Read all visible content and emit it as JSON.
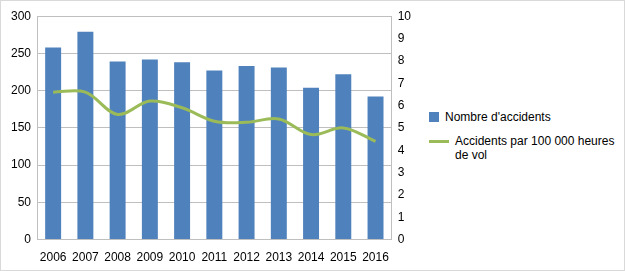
{
  "chart_data": {
    "type": "bar",
    "categories": [
      "2006",
      "2007",
      "2008",
      "2009",
      "2010",
      "2011",
      "2012",
      "2013",
      "2014",
      "2015",
      "2016"
    ],
    "series": [
      {
        "name": "Nombre d'accidents",
        "type": "bar",
        "color": "#4f81bd",
        "values": [
          258,
          279,
          239,
          242,
          238,
          227,
          233,
          231,
          204,
          222,
          192
        ]
      },
      {
        "name": "Accidents par 100 000 heures de vol",
        "type": "line",
        "color": "#9bbb59",
        "axis": "y2",
        "marker": "none",
        "values": [
          6.6,
          6.6,
          5.6,
          6.2,
          5.9,
          5.3,
          5.25,
          5.4,
          4.7,
          5.0,
          4.4
        ]
      }
    ],
    "ylim": [
      0,
      300
    ],
    "yticks": [
      0,
      50,
      100,
      150,
      200,
      250,
      300
    ],
    "y2lim": [
      0,
      10
    ],
    "y2ticks": [
      0,
      1,
      2,
      3,
      4,
      5,
      6,
      7,
      8,
      9,
      10
    ],
    "grid": true,
    "legend": "right"
  }
}
